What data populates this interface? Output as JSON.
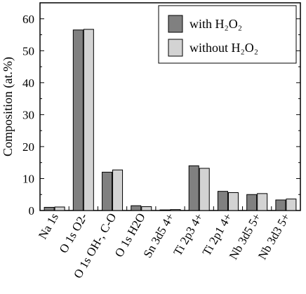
{
  "chart_data": {
    "type": "bar",
    "categories": [
      "Na 1s",
      "O 1s O2-",
      "O 1s OH-, C-O",
      "O 1s H2O",
      "Sn 3d5 4+",
      "Ti 2p3 4+",
      "Ti 2p1 4+",
      "Nb 3d5 5+",
      "Nb 3d3 5+"
    ],
    "series": [
      {
        "name": "with H₂O₂",
        "color": "#808080",
        "values": [
          1.0,
          56.5,
          12.0,
          1.5,
          0.2,
          14.0,
          6.0,
          5.0,
          3.3
        ]
      },
      {
        "name": "without H₂O₂",
        "color": "#d3d3d3",
        "values": [
          1.1,
          56.7,
          12.7,
          1.2,
          0.3,
          13.2,
          5.6,
          5.3,
          3.6
        ]
      }
    ],
    "ylabel": "Composition (at.%)",
    "xlabel": "",
    "ylim": [
      0,
      65
    ],
    "yticks": [
      0,
      10,
      20,
      30,
      40,
      50,
      60
    ],
    "grid": false,
    "legend_position": "top-right"
  }
}
